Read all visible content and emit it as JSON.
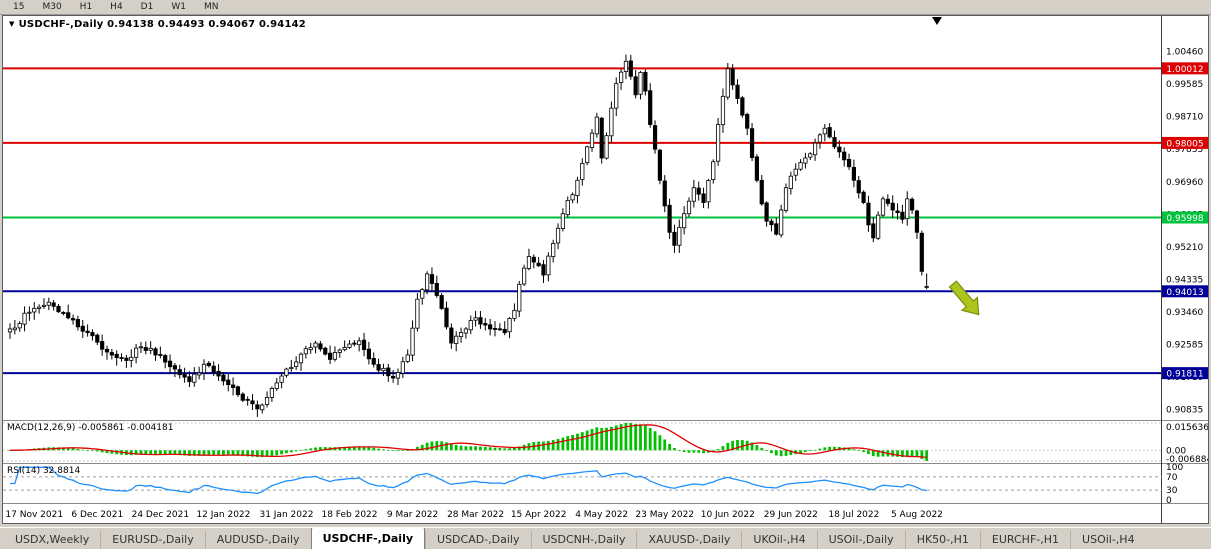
{
  "app": {
    "window_bg": "#d4d0c8"
  },
  "toolbar": {
    "timeframes": [
      "15",
      "M30",
      "H1",
      "H4",
      "D1",
      "W1",
      "MN"
    ]
  },
  "chart": {
    "title": "USDCHF-,Daily  0.94138 0.94493 0.94067 0.94142",
    "symbol": "USDCHF-",
    "period": "Daily",
    "ohlc": {
      "open": "0.94138",
      "high": "0.94493",
      "low": "0.94067",
      "close": "0.94142"
    },
    "price_axis_labels": [
      "1.00460",
      "0.99585",
      "0.98710",
      "0.97835",
      "0.96960",
      "0.96085",
      "0.95210",
      "0.94335",
      "0.93460",
      "0.92585",
      "0.91710",
      "0.90835"
    ],
    "hlines": [
      {
        "price": 1.00012,
        "label": "1.00012",
        "color": "#dd0000"
      },
      {
        "price": 0.98005,
        "label": "0.98005",
        "color": "#dd0000"
      },
      {
        "price": 0.95998,
        "label": "0.95998",
        "color": "#00c23c"
      },
      {
        "price": 0.94013,
        "label": "0.94013",
        "color": "#000099"
      },
      {
        "price": 0.91811,
        "label": "0.91811",
        "color": "#000099"
      }
    ],
    "date_labels": [
      "17 Nov 2021",
      "6 Dec 2021",
      "24 Dec 2021",
      "12 Jan 2022",
      "31 Jan 2022",
      "18 Feb 2022",
      "9 Mar 2022",
      "28 Mar 2022",
      "15 Apr 2022",
      "4 May 2022",
      "23 May 2022",
      "10 Jun 2022",
      "29 Jun 2022",
      "18 Jul 2022",
      "5 Aug 2022"
    ],
    "annotation_arrow_color": "#aec41e"
  },
  "indicators": {
    "macd": {
      "label": "MACD(12,26,9) -0.005861 -0.004181",
      "name": "MACD",
      "params": [
        12,
        26,
        9
      ],
      "main_value": "-0.005861",
      "signal_value": "-0.004181",
      "axis_labels": [
        "0.015636",
        "0.00",
        "-0.006884"
      ],
      "histogram_color": "#00c000",
      "signal_color": "#e00000"
    },
    "rsi": {
      "label": "RSI(14) 32.8814",
      "name": "RSI",
      "period": 14,
      "value": "32.8814",
      "axis_labels": [
        "100",
        "70",
        "30",
        "0"
      ],
      "levels": [
        70,
        30
      ],
      "line_color": "#1e90ff"
    }
  },
  "tabs": [
    "USDX,Weekly",
    "EURUSD-,Daily",
    "AUDUSD-,Daily",
    "USDCHF-,Daily",
    "USDCAD-,Daily",
    "USDCNH-,Daily",
    "XAUUSD-,Daily",
    "UKOil-,H4",
    "USOil-,Daily",
    "HK50-,H1",
    "EURCHF-,H1",
    "USOil-,H4"
  ],
  "active_tab_index": 3,
  "chart_data": {
    "type": "candlestick",
    "symbol": "USDCHF",
    "period": "Daily",
    "candle_count": 190,
    "price_range": {
      "top": 1.0142,
      "bottom": 0.9055
    },
    "last_ohlc": [
      0.94138,
      0.94493,
      0.94067,
      0.94142
    ],
    "anchors": [
      [
        0,
        0.93
      ],
      [
        4,
        0.9345
      ],
      [
        8,
        0.9372
      ],
      [
        12,
        0.933
      ],
      [
        16,
        0.929
      ],
      [
        20,
        0.9238
      ],
      [
        24,
        0.9215
      ],
      [
        27,
        0.9252
      ],
      [
        31,
        0.923
      ],
      [
        34,
        0.9192
      ],
      [
        37,
        0.9158
      ],
      [
        40,
        0.9205
      ],
      [
        44,
        0.916
      ],
      [
        48,
        0.9108
      ],
      [
        51,
        0.9085
      ],
      [
        54,
        0.914
      ],
      [
        57,
        0.9192
      ],
      [
        60,
        0.9232
      ],
      [
        63,
        0.9262
      ],
      [
        66,
        0.9218
      ],
      [
        69,
        0.925
      ],
      [
        72,
        0.9268
      ],
      [
        75,
        0.9205
      ],
      [
        79,
        0.9168
      ],
      [
        82,
        0.923
      ],
      [
        84,
        0.938
      ],
      [
        86,
        0.9448
      ],
      [
        88,
        0.939
      ],
      [
        91,
        0.9262
      ],
      [
        94,
        0.93
      ],
      [
        96,
        0.933
      ],
      [
        99,
        0.93
      ],
      [
        102,
        0.929
      ],
      [
        104,
        0.935
      ],
      [
        105,
        0.942
      ],
      [
        107,
        0.9495
      ],
      [
        110,
        0.9445
      ],
      [
        112,
        0.953
      ],
      [
        114,
        0.961
      ],
      [
        117,
        0.97
      ],
      [
        119,
        0.979
      ],
      [
        121,
        0.987
      ],
      [
        122,
        0.976
      ],
      [
        123,
        0.982
      ],
      [
        125,
        0.996
      ],
      [
        127,
        1.002
      ],
      [
        129,
        0.993
      ],
      [
        130,
        0.999
      ],
      [
        131,
        0.994
      ],
      [
        132,
        0.985
      ],
      [
        134,
        0.97
      ],
      [
        136,
        0.956
      ],
      [
        137,
        0.9525
      ],
      [
        139,
        0.961
      ],
      [
        141,
        0.968
      ],
      [
        143,
        0.964
      ],
      [
        145,
        0.975
      ],
      [
        146,
        0.985
      ],
      [
        148,
        1.0
      ],
      [
        150,
        0.992
      ],
      [
        152,
        0.984
      ],
      [
        154,
        0.97
      ],
      [
        156,
        0.959
      ],
      [
        158,
        0.9555
      ],
      [
        159,
        0.962
      ],
      [
        160,
        0.968
      ],
      [
        162,
        0.973
      ],
      [
        164,
        0.976
      ],
      [
        166,
        0.98
      ],
      [
        168,
        0.984
      ],
      [
        170,
        0.979
      ],
      [
        172,
        0.9755
      ],
      [
        174,
        0.97
      ],
      [
        176,
        0.964
      ],
      [
        177,
        0.958
      ],
      [
        178,
        0.9545
      ],
      [
        180,
        0.965
      ],
      [
        182,
        0.962
      ],
      [
        184,
        0.9595
      ],
      [
        185,
        0.965
      ],
      [
        186,
        0.962
      ],
      [
        187,
        0.956
      ],
      [
        188,
        0.9455
      ],
      [
        189,
        0.94142
      ]
    ]
  }
}
